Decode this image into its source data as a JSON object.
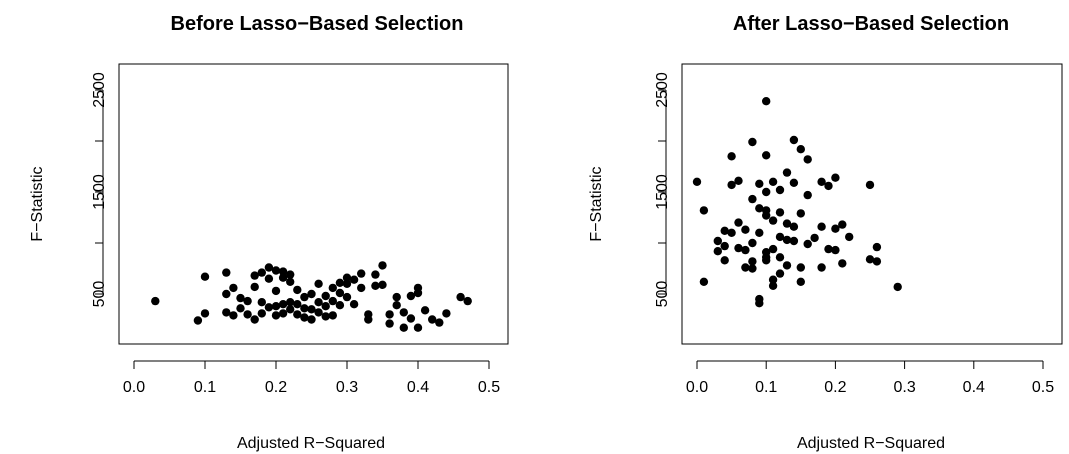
{
  "chart_data": [
    {
      "type": "scatter",
      "title": "Before Lasso−Based Selection",
      "xlabel": "Adjusted R−Squared",
      "ylabel": "F−Statistic",
      "xlim": [
        0.0,
        0.5
      ],
      "ylim": [
        0,
        2500
      ],
      "xticks": [
        "0.0",
        "0.1",
        "0.2",
        "0.3",
        "0.4",
        "0.5"
      ],
      "yticks": [
        "500",
        "1500",
        "2500"
      ],
      "grid": false,
      "points": [
        [
          0.03,
          430
        ],
        [
          0.09,
          240
        ],
        [
          0.1,
          670
        ],
        [
          0.1,
          310
        ],
        [
          0.13,
          710
        ],
        [
          0.13,
          500
        ],
        [
          0.13,
          320
        ],
        [
          0.14,
          560
        ],
        [
          0.14,
          290
        ],
        [
          0.15,
          460
        ],
        [
          0.15,
          360
        ],
        [
          0.16,
          430
        ],
        [
          0.16,
          300
        ],
        [
          0.17,
          680
        ],
        [
          0.17,
          570
        ],
        [
          0.17,
          250
        ],
        [
          0.18,
          710
        ],
        [
          0.18,
          420
        ],
        [
          0.18,
          310
        ],
        [
          0.19,
          760
        ],
        [
          0.19,
          650
        ],
        [
          0.19,
          370
        ],
        [
          0.2,
          730
        ],
        [
          0.2,
          530
        ],
        [
          0.2,
          380
        ],
        [
          0.2,
          290
        ],
        [
          0.21,
          720
        ],
        [
          0.21,
          660
        ],
        [
          0.21,
          400
        ],
        [
          0.21,
          310
        ],
        [
          0.22,
          690
        ],
        [
          0.22,
          620
        ],
        [
          0.22,
          420
        ],
        [
          0.22,
          350
        ],
        [
          0.23,
          540
        ],
        [
          0.23,
          400
        ],
        [
          0.23,
          300
        ],
        [
          0.24,
          470
        ],
        [
          0.24,
          360
        ],
        [
          0.24,
          270
        ],
        [
          0.25,
          500
        ],
        [
          0.25,
          350
        ],
        [
          0.25,
          250
        ],
        [
          0.26,
          600
        ],
        [
          0.26,
          420
        ],
        [
          0.26,
          320
        ],
        [
          0.27,
          480
        ],
        [
          0.27,
          380
        ],
        [
          0.27,
          280
        ],
        [
          0.28,
          560
        ],
        [
          0.28,
          430
        ],
        [
          0.28,
          290
        ],
        [
          0.29,
          610
        ],
        [
          0.29,
          510
        ],
        [
          0.29,
          390
        ],
        [
          0.3,
          660
        ],
        [
          0.3,
          600
        ],
        [
          0.3,
          470
        ],
        [
          0.31,
          640
        ],
        [
          0.31,
          400
        ],
        [
          0.32,
          700
        ],
        [
          0.32,
          560
        ],
        [
          0.33,
          300
        ],
        [
          0.33,
          250
        ],
        [
          0.34,
          690
        ],
        [
          0.34,
          580
        ],
        [
          0.35,
          780
        ],
        [
          0.35,
          590
        ],
        [
          0.36,
          300
        ],
        [
          0.36,
          210
        ],
        [
          0.37,
          470
        ],
        [
          0.37,
          390
        ],
        [
          0.38,
          320
        ],
        [
          0.38,
          170
        ],
        [
          0.39,
          480
        ],
        [
          0.39,
          260
        ],
        [
          0.4,
          560
        ],
        [
          0.4,
          510
        ],
        [
          0.4,
          170
        ],
        [
          0.41,
          340
        ],
        [
          0.42,
          250
        ],
        [
          0.43,
          220
        ],
        [
          0.44,
          310
        ],
        [
          0.46,
          470
        ],
        [
          0.47,
          430
        ]
      ]
    },
    {
      "type": "scatter",
      "title": "After Lasso−Based Selection",
      "xlabel": "Adjusted R−Squared",
      "ylabel": "F−Statistic",
      "xlim": [
        0.0,
        0.5
      ],
      "ylim": [
        0,
        2500
      ],
      "xticks": [
        "0.0",
        "0.1",
        "0.2",
        "0.3",
        "0.4",
        "0.5"
      ],
      "yticks": [
        "500",
        "1500",
        "2500"
      ],
      "grid": false,
      "points": [
        [
          0.0,
          1600
        ],
        [
          0.01,
          1320
        ],
        [
          0.01,
          620
        ],
        [
          0.03,
          1020
        ],
        [
          0.03,
          920
        ],
        [
          0.04,
          1120
        ],
        [
          0.04,
          970
        ],
        [
          0.04,
          830
        ],
        [
          0.05,
          1850
        ],
        [
          0.05,
          1570
        ],
        [
          0.05,
          1100
        ],
        [
          0.06,
          1610
        ],
        [
          0.06,
          1200
        ],
        [
          0.06,
          950
        ],
        [
          0.07,
          1130
        ],
        [
          0.07,
          930
        ],
        [
          0.07,
          760
        ],
        [
          0.08,
          1990
        ],
        [
          0.08,
          1430
        ],
        [
          0.08,
          1000
        ],
        [
          0.08,
          820
        ],
        [
          0.08,
          750
        ],
        [
          0.09,
          1580
        ],
        [
          0.09,
          1340
        ],
        [
          0.09,
          1100
        ],
        [
          0.09,
          450
        ],
        [
          0.09,
          410
        ],
        [
          0.1,
          2390
        ],
        [
          0.1,
          1860
        ],
        [
          0.1,
          1500
        ],
        [
          0.1,
          1320
        ],
        [
          0.1,
          1270
        ],
        [
          0.1,
          910
        ],
        [
          0.1,
          860
        ],
        [
          0.1,
          830
        ],
        [
          0.11,
          1600
        ],
        [
          0.11,
          1220
        ],
        [
          0.11,
          940
        ],
        [
          0.11,
          640
        ],
        [
          0.11,
          580
        ],
        [
          0.12,
          1520
        ],
        [
          0.12,
          1300
        ],
        [
          0.12,
          1060
        ],
        [
          0.12,
          860
        ],
        [
          0.12,
          700
        ],
        [
          0.13,
          1690
        ],
        [
          0.13,
          1190
        ],
        [
          0.13,
          1030
        ],
        [
          0.13,
          780
        ],
        [
          0.14,
          2010
        ],
        [
          0.14,
          1590
        ],
        [
          0.14,
          1160
        ],
        [
          0.14,
          1020
        ],
        [
          0.15,
          1920
        ],
        [
          0.15,
          1290
        ],
        [
          0.15,
          760
        ],
        [
          0.15,
          620
        ],
        [
          0.16,
          1820
        ],
        [
          0.16,
          1470
        ],
        [
          0.16,
          990
        ],
        [
          0.17,
          1050
        ],
        [
          0.18,
          1600
        ],
        [
          0.18,
          1160
        ],
        [
          0.18,
          760
        ],
        [
          0.19,
          1560
        ],
        [
          0.19,
          940
        ],
        [
          0.2,
          1640
        ],
        [
          0.2,
          1140
        ],
        [
          0.2,
          930
        ],
        [
          0.21,
          1180
        ],
        [
          0.21,
          800
        ],
        [
          0.22,
          1060
        ],
        [
          0.25,
          1570
        ],
        [
          0.25,
          840
        ],
        [
          0.26,
          960
        ],
        [
          0.26,
          820
        ],
        [
          0.29,
          570
        ]
      ]
    }
  ]
}
